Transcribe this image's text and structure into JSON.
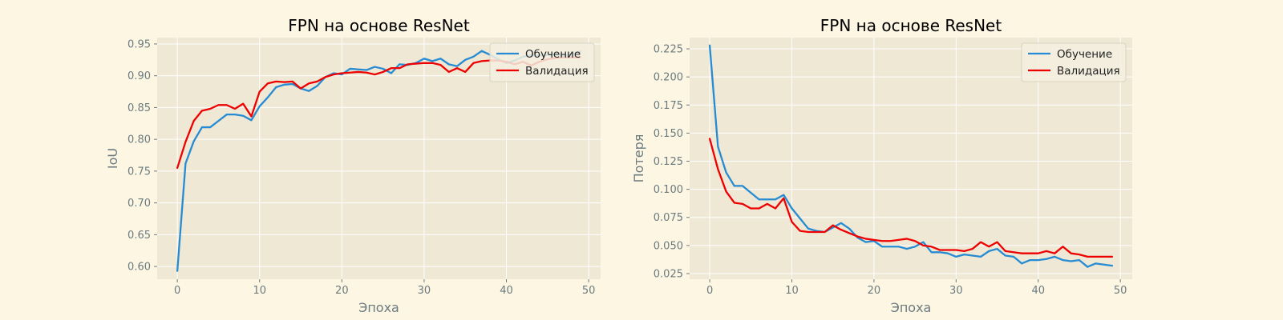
{
  "figure_background": "#fdf6e3",
  "plot_background": "#eee8d5",
  "grid_color": "#ffffff",
  "tick_color": "#6b7b80",
  "title_color": "#000000",
  "chart_data": [
    {
      "type": "line",
      "title": "FPN на основе ResNet",
      "xlabel": "Эпоха",
      "ylabel": "IoU",
      "xlim": [
        -2.45,
        51.45
      ],
      "ylim": [
        0.58,
        0.96
      ],
      "xticks": [
        0,
        10,
        20,
        30,
        40,
        50
      ],
      "xtick_labels": [
        "0",
        "10",
        "20",
        "30",
        "40",
        "50"
      ],
      "yticks": [
        0.6,
        0.65,
        0.7,
        0.75,
        0.8,
        0.85,
        0.9,
        0.95
      ],
      "ytick_labels": [
        "0.60",
        "0.65",
        "0.70",
        "0.75",
        "0.80",
        "0.85",
        "0.90",
        "0.95"
      ],
      "grid": true,
      "legend": "upper right",
      "series": [
        {
          "name": "Обучение",
          "color": "#268bd2",
          "x": [
            0,
            1,
            2,
            3,
            4,
            5,
            6,
            7,
            8,
            9,
            10,
            11,
            12,
            13,
            14,
            15,
            16,
            17,
            18,
            19,
            20,
            21,
            22,
            23,
            24,
            25,
            26,
            27,
            28,
            29,
            30,
            31,
            32,
            33,
            34,
            35,
            36,
            37,
            38,
            39,
            40,
            41,
            42,
            43,
            44,
            45,
            46,
            47,
            48,
            49
          ],
          "values": [
            0.593,
            0.762,
            0.797,
            0.819,
            0.819,
            0.829,
            0.839,
            0.839,
            0.837,
            0.83,
            0.852,
            0.866,
            0.882,
            0.886,
            0.887,
            0.88,
            0.876,
            0.884,
            0.898,
            0.904,
            0.902,
            0.911,
            0.91,
            0.909,
            0.914,
            0.911,
            0.904,
            0.918,
            0.917,
            0.92,
            0.927,
            0.923,
            0.927,
            0.918,
            0.915,
            0.925,
            0.93,
            0.939,
            0.933,
            0.926,
            0.92,
            0.924,
            0.93,
            0.932,
            0.932,
            0.933,
            0.934,
            0.931,
            0.934,
            0.938
          ]
        },
        {
          "name": "Валидация",
          "color": "#ee0000",
          "x": [
            0,
            1,
            2,
            3,
            4,
            5,
            6,
            7,
            8,
            9,
            10,
            11,
            12,
            13,
            14,
            15,
            16,
            17,
            18,
            19,
            20,
            21,
            22,
            23,
            24,
            25,
            26,
            27,
            28,
            29,
            30,
            31,
            32,
            33,
            34,
            35,
            36,
            37,
            38,
            39,
            40,
            41,
            42,
            43,
            44,
            45,
            46,
            47,
            48,
            49
          ],
          "values": [
            0.755,
            0.796,
            0.829,
            0.845,
            0.848,
            0.854,
            0.854,
            0.848,
            0.856,
            0.836,
            0.875,
            0.888,
            0.891,
            0.89,
            0.891,
            0.88,
            0.888,
            0.891,
            0.898,
            0.902,
            0.904,
            0.905,
            0.906,
            0.905,
            0.902,
            0.906,
            0.912,
            0.912,
            0.918,
            0.919,
            0.92,
            0.92,
            0.917,
            0.906,
            0.912,
            0.906,
            0.92,
            0.923,
            0.924,
            0.924,
            0.922,
            0.918,
            0.922,
            0.916,
            0.922,
            0.926,
            0.928,
            0.929,
            0.929,
            0.929
          ]
        }
      ]
    },
    {
      "type": "line",
      "title": "FPN на основе ResNet",
      "xlabel": "Эпоха",
      "ylabel": "Потеря",
      "xlim": [
        -2.45,
        51.45
      ],
      "ylim": [
        0.02,
        0.235
      ],
      "xticks": [
        0,
        10,
        20,
        30,
        40,
        50
      ],
      "xtick_labels": [
        "0",
        "10",
        "20",
        "30",
        "40",
        "50"
      ],
      "yticks": [
        0.025,
        0.05,
        0.075,
        0.1,
        0.125,
        0.15,
        0.175,
        0.2,
        0.225
      ],
      "ytick_labels": [
        "0.025",
        "0.050",
        "0.075",
        "0.100",
        "0.125",
        "0.150",
        "0.175",
        "0.200",
        "0.225"
      ],
      "grid": true,
      "legend": "upper right",
      "series": [
        {
          "name": "Обучение",
          "color": "#268bd2",
          "x": [
            0,
            1,
            2,
            3,
            4,
            5,
            6,
            7,
            8,
            9,
            10,
            11,
            12,
            13,
            14,
            15,
            16,
            17,
            18,
            19,
            20,
            21,
            22,
            23,
            24,
            25,
            26,
            27,
            28,
            29,
            30,
            31,
            32,
            33,
            34,
            35,
            36,
            37,
            38,
            39,
            40,
            41,
            42,
            43,
            44,
            45,
            46,
            47,
            48,
            49
          ],
          "values": [
            0.228,
            0.138,
            0.115,
            0.103,
            0.103,
            0.097,
            0.091,
            0.091,
            0.091,
            0.095,
            0.083,
            0.074,
            0.065,
            0.063,
            0.062,
            0.066,
            0.07,
            0.065,
            0.057,
            0.053,
            0.054,
            0.049,
            0.049,
            0.049,
            0.047,
            0.049,
            0.053,
            0.044,
            0.044,
            0.043,
            0.04,
            0.042,
            0.041,
            0.04,
            0.045,
            0.047,
            0.041,
            0.04,
            0.034,
            0.037,
            0.037,
            0.038,
            0.04,
            0.037,
            0.036,
            0.037,
            0.031,
            0.034,
            0.033,
            0.032
          ]
        },
        {
          "name": "Валидация",
          "color": "#ee0000",
          "x": [
            0,
            1,
            2,
            3,
            4,
            5,
            6,
            7,
            8,
            9,
            10,
            11,
            12,
            13,
            14,
            15,
            16,
            17,
            18,
            19,
            20,
            21,
            22,
            23,
            24,
            25,
            26,
            27,
            28,
            29,
            30,
            31,
            32,
            33,
            34,
            35,
            36,
            37,
            38,
            39,
            40,
            41,
            42,
            43,
            44,
            45,
            46,
            47,
            48,
            49
          ],
          "values": [
            0.145,
            0.118,
            0.098,
            0.088,
            0.087,
            0.083,
            0.083,
            0.087,
            0.083,
            0.092,
            0.071,
            0.063,
            0.062,
            0.062,
            0.062,
            0.068,
            0.064,
            0.061,
            0.058,
            0.056,
            0.055,
            0.054,
            0.054,
            0.055,
            0.056,
            0.054,
            0.05,
            0.049,
            0.046,
            0.046,
            0.046,
            0.045,
            0.047,
            0.053,
            0.049,
            0.053,
            0.045,
            0.044,
            0.043,
            0.043,
            0.043,
            0.045,
            0.043,
            0.049,
            0.043,
            0.042,
            0.04,
            0.04,
            0.04,
            0.04
          ]
        }
      ]
    }
  ]
}
